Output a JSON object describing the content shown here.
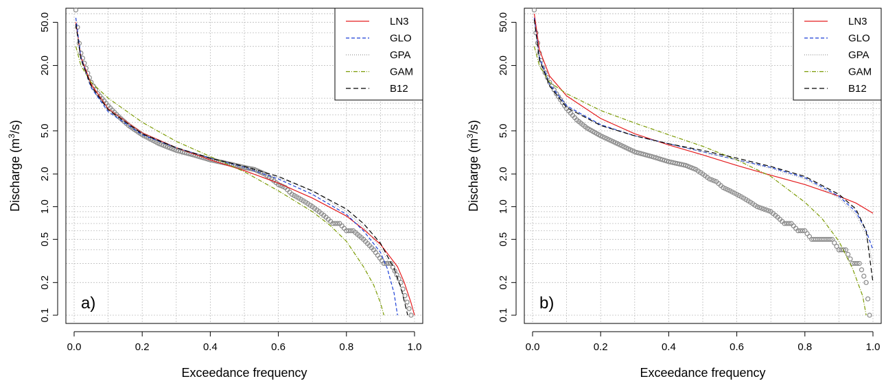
{
  "chart_data": [
    {
      "panel_label": "a)",
      "type": "line",
      "xlabel": "Exceedance frequency",
      "ylabel": "Discharge (m³/s)",
      "ylabel_parts": {
        "prefix": "Discharge (m",
        "sup": "3",
        "suffix": "/s)"
      },
      "xlim": [
        0.0,
        1.0
      ],
      "ylim": [
        0.1,
        60
      ],
      "yscale": "log",
      "xticks": [
        "0.0",
        "0.2",
        "0.4",
        "0.6",
        "0.8",
        "1.0"
      ],
      "yticks": [
        "0.1",
        "0.2",
        "0.5",
        "1.0",
        "2.0",
        "5.0",
        "20.0",
        "50.0"
      ],
      "grid": true,
      "legend": {
        "position": "top-right",
        "entries": [
          "LN3",
          "GLO",
          "GPA",
          "GAM",
          "B12"
        ]
      },
      "observed": {
        "marker": "circle",
        "color": "#888888",
        "x": [
          0.005,
          0.01,
          0.015,
          0.02,
          0.03,
          0.04,
          0.05,
          0.07,
          0.1,
          0.13,
          0.16,
          0.2,
          0.25,
          0.3,
          0.35,
          0.4,
          0.45,
          0.5,
          0.53,
          0.56,
          0.58,
          0.6,
          0.62,
          0.64,
          0.66,
          0.68,
          0.7,
          0.72,
          0.74,
          0.76,
          0.78,
          0.8,
          0.82,
          0.85,
          0.88,
          0.91,
          0.93,
          0.96,
          0.99
        ],
        "y": [
          65,
          45,
          32,
          26,
          21,
          17,
          14,
          11,
          8.5,
          6.8,
          5.6,
          4.6,
          3.8,
          3.3,
          3.0,
          2.7,
          2.5,
          2.3,
          2.2,
          2.0,
          1.8,
          1.6,
          1.5,
          1.3,
          1.2,
          1.1,
          1.0,
          0.9,
          0.8,
          0.7,
          0.7,
          0.6,
          0.6,
          0.5,
          0.4,
          0.3,
          0.3,
          0.2,
          0.1
        ]
      },
      "series": [
        {
          "name": "LN3",
          "color": "#e41a1c",
          "dash": "",
          "x": [
            0.005,
            0.02,
            0.05,
            0.1,
            0.2,
            0.3,
            0.4,
            0.5,
            0.6,
            0.7,
            0.8,
            0.85,
            0.9,
            0.95,
            0.97,
            0.99,
            1.0
          ],
          "y": [
            50,
            24,
            13.5,
            8.0,
            4.8,
            3.5,
            2.7,
            2.15,
            1.65,
            1.2,
            0.82,
            0.62,
            0.45,
            0.28,
            0.2,
            0.13,
            0.1
          ]
        },
        {
          "name": "GLO",
          "color": "#1a3ed6",
          "dash": "5,3",
          "x": [
            0.005,
            0.02,
            0.05,
            0.1,
            0.2,
            0.3,
            0.4,
            0.5,
            0.6,
            0.7,
            0.8,
            0.85,
            0.9,
            0.92,
            0.94,
            0.95
          ],
          "y": [
            55,
            24,
            12.5,
            7.5,
            4.6,
            3.5,
            2.8,
            2.3,
            1.8,
            1.3,
            0.85,
            0.6,
            0.38,
            0.27,
            0.16,
            0.1
          ]
        },
        {
          "name": "GPA",
          "color": "#999999",
          "dash": "1,2",
          "x": [
            0.005,
            0.02,
            0.05,
            0.1,
            0.2,
            0.3,
            0.4,
            0.5,
            0.6,
            0.7,
            0.8,
            0.85,
            0.9,
            0.94,
            0.97,
            0.99
          ],
          "y": [
            48,
            23,
            13,
            8.0,
            4.8,
            3.5,
            2.75,
            2.3,
            1.85,
            1.4,
            0.9,
            0.65,
            0.42,
            0.25,
            0.15,
            0.1
          ]
        },
        {
          "name": "GAM",
          "color": "#7a9a01",
          "dash": "6,2,1,2",
          "x": [
            0.005,
            0.02,
            0.05,
            0.1,
            0.2,
            0.3,
            0.4,
            0.5,
            0.6,
            0.7,
            0.75,
            0.8,
            0.85,
            0.88,
            0.9,
            0.91
          ],
          "y": [
            30,
            20,
            14,
            10,
            6.0,
            4.0,
            2.9,
            2.1,
            1.4,
            0.9,
            0.68,
            0.48,
            0.28,
            0.19,
            0.13,
            0.1
          ]
        },
        {
          "name": "B12",
          "color": "#000000",
          "dash": "7,4",
          "x": [
            0.005,
            0.02,
            0.05,
            0.1,
            0.2,
            0.3,
            0.4,
            0.5,
            0.6,
            0.7,
            0.8,
            0.85,
            0.9,
            0.94,
            0.96,
            0.98
          ],
          "y": [
            48,
            23,
            13,
            7.8,
            4.7,
            3.5,
            2.8,
            2.35,
            1.9,
            1.4,
            0.95,
            0.7,
            0.46,
            0.27,
            0.18,
            0.1
          ]
        }
      ]
    },
    {
      "panel_label": "b)",
      "type": "line",
      "xlabel": "Exceedance frequency",
      "ylabel": "Discharge (m³/s)",
      "ylabel_parts": {
        "prefix": "Discharge (m",
        "sup": "3",
        "suffix": "/s)"
      },
      "xlim": [
        0.0,
        1.0
      ],
      "ylim": [
        0.1,
        60
      ],
      "yscale": "log",
      "xticks": [
        "0.0",
        "0.2",
        "0.4",
        "0.6",
        "0.8",
        "1.0"
      ],
      "yticks": [
        "0.1",
        "0.2",
        "0.5",
        "1.0",
        "2.0",
        "5.0",
        "20.0",
        "50.0"
      ],
      "grid": true,
      "legend": {
        "position": "top-right",
        "entries": [
          "LN3",
          "GLO",
          "GPA",
          "GAM",
          "B12"
        ]
      },
      "observed": {
        "marker": "circle",
        "color": "#888888",
        "x": [
          0.005,
          0.01,
          0.02,
          0.03,
          0.05,
          0.07,
          0.1,
          0.13,
          0.16,
          0.2,
          0.25,
          0.3,
          0.35,
          0.4,
          0.45,
          0.48,
          0.5,
          0.52,
          0.54,
          0.56,
          0.58,
          0.6,
          0.62,
          0.64,
          0.66,
          0.68,
          0.7,
          0.72,
          0.74,
          0.76,
          0.78,
          0.8,
          0.82,
          0.85,
          0.88,
          0.9,
          0.92,
          0.94,
          0.96,
          0.98,
          0.99
        ],
        "y": [
          65,
          40,
          26,
          19,
          14,
          11,
          8.0,
          6.3,
          5.3,
          4.5,
          3.8,
          3.2,
          2.9,
          2.6,
          2.4,
          2.2,
          2.0,
          1.8,
          1.7,
          1.5,
          1.4,
          1.3,
          1.2,
          1.1,
          1.0,
          0.95,
          0.9,
          0.8,
          0.7,
          0.7,
          0.6,
          0.6,
          0.5,
          0.5,
          0.5,
          0.4,
          0.4,
          0.3,
          0.3,
          0.2,
          0.1
        ]
      },
      "series": [
        {
          "name": "LN3",
          "color": "#e41a1c",
          "dash": "",
          "x": [
            0.005,
            0.02,
            0.05,
            0.1,
            0.2,
            0.3,
            0.4,
            0.5,
            0.6,
            0.7,
            0.8,
            0.9,
            0.95,
            1.0
          ],
          "y": [
            60,
            28,
            16,
            10.5,
            6.5,
            4.7,
            3.7,
            3.0,
            2.4,
            1.95,
            1.6,
            1.25,
            1.08,
            0.87
          ]
        },
        {
          "name": "GLO",
          "color": "#1a3ed6",
          "dash": "5,3",
          "x": [
            0.005,
            0.02,
            0.05,
            0.1,
            0.2,
            0.3,
            0.4,
            0.5,
            0.6,
            0.7,
            0.8,
            0.9,
            0.95,
            0.98,
            1.0
          ],
          "y": [
            55,
            24,
            13.5,
            8.5,
            5.7,
            4.5,
            3.8,
            3.2,
            2.7,
            2.3,
            1.85,
            1.25,
            0.9,
            0.6,
            0.4
          ]
        },
        {
          "name": "GPA",
          "color": "#999999",
          "dash": "1,2",
          "x": [
            0.005,
            0.02,
            0.05,
            0.1,
            0.2,
            0.3,
            0.4,
            0.5,
            0.6,
            0.7,
            0.8,
            0.9,
            0.95,
            0.98,
            1.0
          ],
          "y": [
            52,
            23,
            13,
            8.3,
            5.6,
            4.5,
            3.8,
            3.2,
            2.7,
            2.25,
            1.8,
            1.2,
            0.85,
            0.55,
            0.3
          ]
        },
        {
          "name": "GAM",
          "color": "#7a9a01",
          "dash": "6,2,1,2",
          "x": [
            0.005,
            0.02,
            0.05,
            0.1,
            0.2,
            0.3,
            0.4,
            0.5,
            0.6,
            0.7,
            0.8,
            0.85,
            0.9,
            0.94,
            0.97,
            0.98
          ],
          "y": [
            30,
            20,
            14,
            11,
            7.7,
            5.9,
            4.6,
            3.6,
            2.7,
            1.9,
            1.1,
            0.78,
            0.48,
            0.27,
            0.15,
            0.1
          ]
        },
        {
          "name": "B12",
          "color": "#000000",
          "dash": "7,4",
          "x": [
            0.005,
            0.02,
            0.05,
            0.1,
            0.2,
            0.3,
            0.4,
            0.5,
            0.6,
            0.7,
            0.8,
            0.9,
            0.95,
            0.98,
            1.0
          ],
          "y": [
            53,
            23,
            13,
            8.2,
            5.6,
            4.5,
            3.8,
            3.3,
            2.8,
            2.35,
            1.9,
            1.3,
            0.95,
            0.6,
            0.2
          ]
        }
      ]
    }
  ]
}
